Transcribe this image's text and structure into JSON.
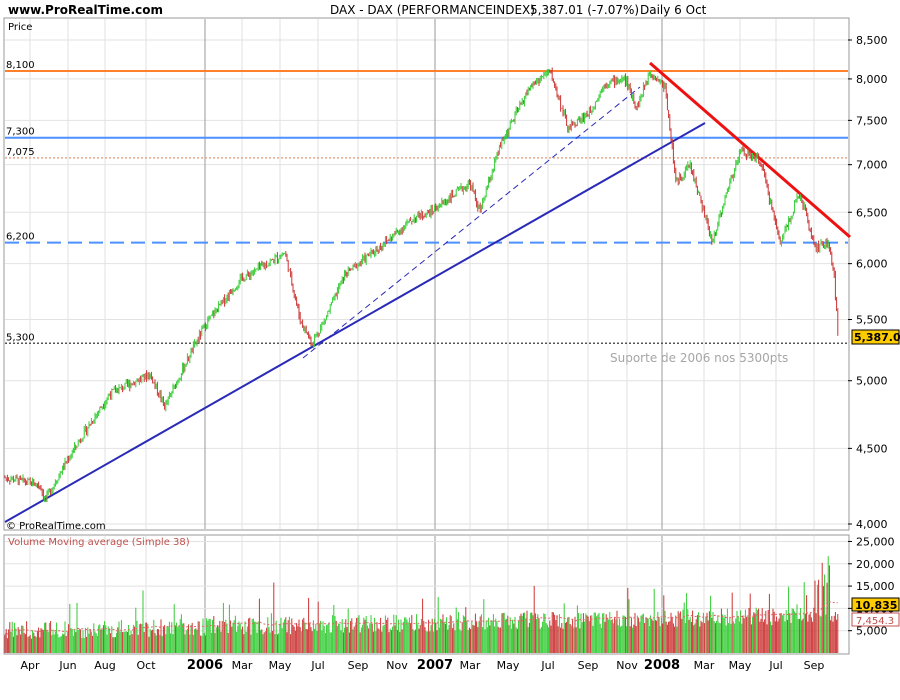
{
  "header": {
    "site": "www.ProRealTime.com",
    "title": "DAX - DAX (PERFORMANCEINDEX)",
    "last": "5,387.01 (-7.07%)",
    "period": "Daily  6 Oct"
  },
  "price_panel": {
    "label": "Price",
    "watermark": "© ProRealTime.com",
    "annotation": "Suporte de 2006 nos 5300pts",
    "last_price_label": "5,387.01",
    "y_ticks": [
      "8,500",
      "8,000",
      "7,500",
      "7,000",
      "6,500",
      "6,000",
      "5,500",
      "5,000",
      "4,500",
      "4,000"
    ],
    "levels": [
      {
        "label": "8,100",
        "value": 8100,
        "color": "#ff7f2a",
        "style": "solid"
      },
      {
        "label": "7,300",
        "value": 7300,
        "color": "#4d90ff",
        "style": "solid"
      },
      {
        "label": "7,075",
        "value": 7075,
        "color": "#e6a88c",
        "style": "dotted"
      },
      {
        "label": "6,200",
        "value": 6200,
        "color": "#4d90ff",
        "style": "dashed"
      },
      {
        "label": "5,300",
        "value": 5300,
        "color": "#555555",
        "style": "dotted"
      }
    ],
    "colors": {
      "up": "#33cc33",
      "down": "#cc3333",
      "resistance": "#ee1111",
      "support": "#2a2ab8"
    }
  },
  "volume_panel": {
    "label": "Volume Moving average (Simple 38)",
    "y_ticks": [
      "25,000",
      "20,000",
      "15,000",
      "10,000",
      "5,000"
    ],
    "volume_label": "10,835",
    "ma_label": "7,454.3"
  },
  "x_axis": {
    "labels": [
      {
        "text": "Apr",
        "bold": false
      },
      {
        "text": "Jun",
        "bold": false
      },
      {
        "text": "Aug",
        "bold": false
      },
      {
        "text": "Oct",
        "bold": false
      },
      {
        "text": "2006",
        "bold": true
      },
      {
        "text": "Mar",
        "bold": false
      },
      {
        "text": "May",
        "bold": false
      },
      {
        "text": "Jul",
        "bold": false
      },
      {
        "text": "Sep",
        "bold": false
      },
      {
        "text": "Nov",
        "bold": false
      },
      {
        "text": "2007",
        "bold": true
      },
      {
        "text": "Mar",
        "bold": false
      },
      {
        "text": "May",
        "bold": false
      },
      {
        "text": "Jul",
        "bold": false
      },
      {
        "text": "Sep",
        "bold": false
      },
      {
        "text": "Nov",
        "bold": false
      },
      {
        "text": "2008",
        "bold": true
      },
      {
        "text": "Mar",
        "bold": false
      },
      {
        "text": "May",
        "bold": false
      },
      {
        "text": "Jul",
        "bold": false
      },
      {
        "text": "Sep",
        "bold": false
      }
    ]
  },
  "chart_data": {
    "type": "line",
    "x": [
      "2005-04",
      "2005-06",
      "2005-08",
      "2005-10",
      "2006-01",
      "2006-03",
      "2006-05",
      "2006-06",
      "2006-07",
      "2006-09",
      "2006-11",
      "2007-01",
      "2007-03",
      "2007-05",
      "2007-07",
      "2007-08",
      "2007-09",
      "2007-11",
      "2007-12",
      "2008-01",
      "2008-03",
      "2008-05",
      "2008-06",
      "2008-07",
      "2008-08",
      "2008-09",
      "2008-10"
    ],
    "series": [
      {
        "values": [
          4300,
          4450,
          4850,
          4900,
          5400,
          5800,
          6100,
          5500,
          5500,
          5800,
          6250,
          6700,
          6700,
          7600,
          8100,
          7400,
          7600,
          8000,
          8100,
          7600,
          6500,
          7200,
          6800,
          6300,
          6500,
          6100,
          5387
        ]
      }
    ],
    "ylim": [
      4000,
      8600
    ],
    "y_scale": "log",
    "xlabel": "",
    "ylabel": "Price",
    "volume": {
      "ylim": [
        0,
        26000
      ],
      "last_volume": 10835,
      "moving_average_38": 7454.3
    },
    "horizontal_levels": [
      8100,
      7300,
      7075,
      6200,
      5300
    ],
    "grid": true
  }
}
